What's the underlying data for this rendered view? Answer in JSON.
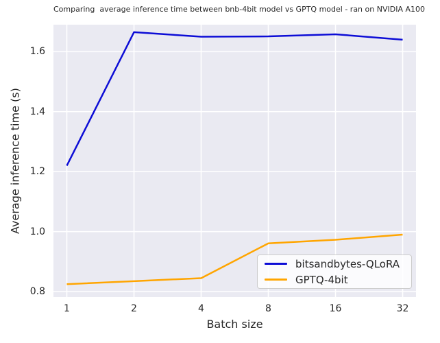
{
  "chart_data": {
    "type": "line",
    "title": "Comparing  average inference time between bnb-4bit model vs GPTQ model - ran on NVIDIA A100",
    "xlabel": "Batch size",
    "ylabel": "Average inference time (s)",
    "categories": [
      "1",
      "2",
      "4",
      "8",
      "16",
      "32"
    ],
    "y_ticks": [
      0.8,
      1.0,
      1.2,
      1.4,
      1.6
    ],
    "ylim": [
      0.782,
      1.69
    ],
    "grid": true,
    "grid_color": "#ffffff",
    "background_color": "#eaeaf2",
    "legend_position": "lower right inside plot",
    "series": [
      {
        "name": "bitsandbytes-QLoRA",
        "color": "#0d0dd6",
        "values": [
          1.22,
          1.665,
          1.65,
          1.651,
          1.658,
          1.64
        ]
      },
      {
        "name": "GPTQ-4bit",
        "color": "#ffa500",
        "values": [
          0.825,
          0.835,
          0.845,
          0.961,
          0.973,
          0.99
        ]
      }
    ]
  }
}
